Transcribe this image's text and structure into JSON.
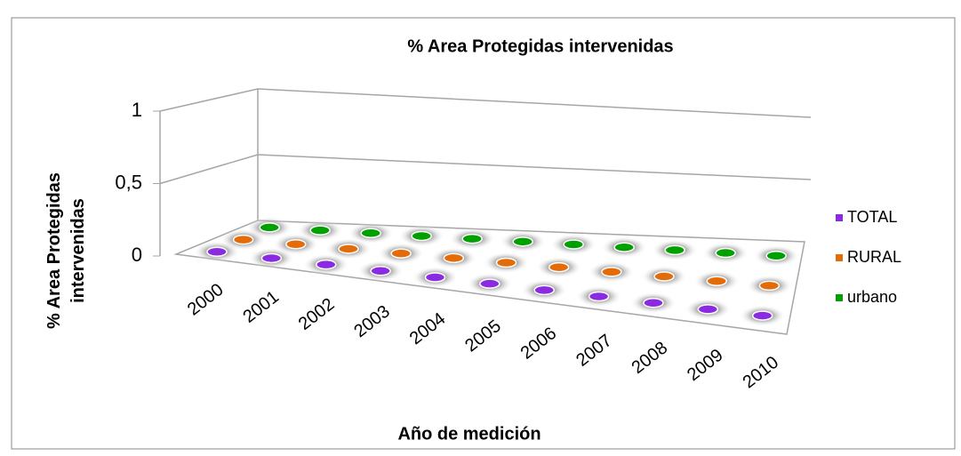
{
  "chart_data": {
    "type": "bar3d",
    "title": "% Area Protegidas intervenidas",
    "x_label": "Año de medición",
    "y_label": "% Area Protegidas intervenidas",
    "categories": [
      "2000",
      "2001",
      "2002",
      "2003",
      "2004",
      "2005",
      "2006",
      "2007",
      "2008",
      "2009",
      "2010"
    ],
    "series": [
      {
        "name": "TOTAL",
        "color": "#8a2be2",
        "values": [
          0,
          0,
          0,
          0,
          0,
          0,
          0,
          0,
          0,
          0,
          0
        ]
      },
      {
        "name": "RURAL",
        "color": "#e36c09",
        "values": [
          0,
          0,
          0,
          0,
          0,
          0,
          0,
          0,
          0,
          0,
          0
        ]
      },
      {
        "name": "urbano",
        "color": "#00a000",
        "values": [
          0,
          0,
          0,
          0,
          0,
          0,
          0,
          0,
          0,
          0,
          0
        ]
      }
    ],
    "ylim": [
      0,
      1
    ],
    "yticks": [
      0,
      {
        "value": 0.5,
        "label": "0,5"
      },
      1
    ],
    "grid": true,
    "legend": "right"
  }
}
